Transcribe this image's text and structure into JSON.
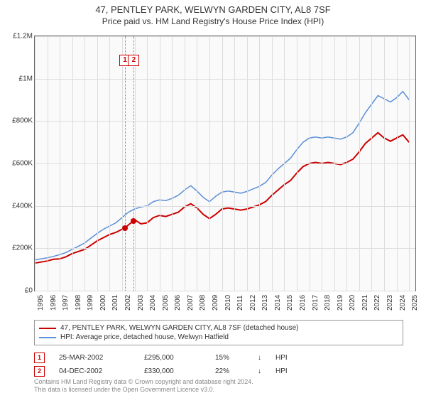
{
  "title": "47, PENTLEY PARK, WELWYN GARDEN CITY, AL8 7SF",
  "subtitle": "Price paid vs. HM Land Registry's House Price Index (HPI)",
  "chart": {
    "type": "line",
    "background_color": "#fafafa",
    "border_color": "#666666",
    "grid_color": "#dddddd",
    "x_start_year": 1995,
    "x_end_year": 2025.5,
    "ylim": [
      0,
      1200000
    ],
    "yticks": [
      {
        "v": 0,
        "label": "£0"
      },
      {
        "v": 200000,
        "label": "£200K"
      },
      {
        "v": 400000,
        "label": "£400K"
      },
      {
        "v": 600000,
        "label": "£600K"
      },
      {
        "v": 800000,
        "label": "£800K"
      },
      {
        "v": 1000000,
        "label": "£1M"
      },
      {
        "v": 1200000,
        "label": "£1.2M"
      }
    ],
    "xticks": [
      "1995",
      "1996",
      "1997",
      "1998",
      "1999",
      "2000",
      "2001",
      "2002",
      "2003",
      "2004",
      "2005",
      "2006",
      "2007",
      "2008",
      "2009",
      "2010",
      "2011",
      "2012",
      "2013",
      "2014",
      "2015",
      "2016",
      "2017",
      "2018",
      "2019",
      "2020",
      "2021",
      "2022",
      "2023",
      "2024",
      "2025"
    ],
    "series": [
      {
        "name": "property",
        "label": "47, PENTLEY PARK, WELWYN GARDEN CITY, AL8 7SF (detached house)",
        "color": "#cc0000",
        "width": 2,
        "points": [
          [
            1995,
            130000
          ],
          [
            1995.5,
            135000
          ],
          [
            1996,
            140000
          ],
          [
            1996.5,
            148000
          ],
          [
            1997,
            150000
          ],
          [
            1997.5,
            160000
          ],
          [
            1998,
            175000
          ],
          [
            1998.5,
            185000
          ],
          [
            1999,
            195000
          ],
          [
            1999.5,
            215000
          ],
          [
            2000,
            235000
          ],
          [
            2000.5,
            250000
          ],
          [
            2001,
            265000
          ],
          [
            2001.5,
            275000
          ],
          [
            2002,
            290000
          ],
          [
            2002.23,
            295000
          ],
          [
            2002.5,
            310000
          ],
          [
            2002.93,
            330000
          ],
          [
            2003,
            335000
          ],
          [
            2003.5,
            315000
          ],
          [
            2004,
            320000
          ],
          [
            2004.5,
            345000
          ],
          [
            2005,
            355000
          ],
          [
            2005.5,
            350000
          ],
          [
            2006,
            360000
          ],
          [
            2006.5,
            370000
          ],
          [
            2007,
            395000
          ],
          [
            2007.5,
            410000
          ],
          [
            2008,
            390000
          ],
          [
            2008.5,
            360000
          ],
          [
            2009,
            340000
          ],
          [
            2009.5,
            360000
          ],
          [
            2010,
            385000
          ],
          [
            2010.5,
            390000
          ],
          [
            2011,
            385000
          ],
          [
            2011.5,
            380000
          ],
          [
            2012,
            385000
          ],
          [
            2012.5,
            395000
          ],
          [
            2013,
            405000
          ],
          [
            2013.5,
            420000
          ],
          [
            2014,
            450000
          ],
          [
            2014.5,
            475000
          ],
          [
            2015,
            500000
          ],
          [
            2015.5,
            520000
          ],
          [
            2016,
            555000
          ],
          [
            2016.5,
            585000
          ],
          [
            2017,
            600000
          ],
          [
            2017.5,
            605000
          ],
          [
            2018,
            600000
          ],
          [
            2018.5,
            605000
          ],
          [
            2019,
            600000
          ],
          [
            2019.5,
            595000
          ],
          [
            2020,
            605000
          ],
          [
            2020.5,
            620000
          ],
          [
            2021,
            655000
          ],
          [
            2021.5,
            695000
          ],
          [
            2022,
            720000
          ],
          [
            2022.5,
            745000
          ],
          [
            2023,
            720000
          ],
          [
            2023.5,
            705000
          ],
          [
            2024,
            720000
          ],
          [
            2024.5,
            735000
          ],
          [
            2025,
            700000
          ]
        ]
      },
      {
        "name": "hpi",
        "label": "HPI: Average price, detached house, Welwyn Hatfield",
        "color": "#5b8fd6",
        "width": 1.5,
        "points": [
          [
            1995,
            145000
          ],
          [
            1995.5,
            150000
          ],
          [
            1996,
            155000
          ],
          [
            1996.5,
            162000
          ],
          [
            1997,
            170000
          ],
          [
            1997.5,
            180000
          ],
          [
            1998,
            195000
          ],
          [
            1998.5,
            210000
          ],
          [
            1999,
            225000
          ],
          [
            1999.5,
            248000
          ],
          [
            2000,
            270000
          ],
          [
            2000.5,
            290000
          ],
          [
            2001,
            305000
          ],
          [
            2001.5,
            320000
          ],
          [
            2002,
            345000
          ],
          [
            2002.5,
            370000
          ],
          [
            2003,
            385000
          ],
          [
            2003.5,
            395000
          ],
          [
            2004,
            400000
          ],
          [
            2004.5,
            420000
          ],
          [
            2005,
            428000
          ],
          [
            2005.5,
            425000
          ],
          [
            2006,
            435000
          ],
          [
            2006.5,
            450000
          ],
          [
            2007,
            475000
          ],
          [
            2007.5,
            495000
          ],
          [
            2008,
            470000
          ],
          [
            2008.5,
            440000
          ],
          [
            2009,
            420000
          ],
          [
            2009.5,
            445000
          ],
          [
            2010,
            465000
          ],
          [
            2010.5,
            470000
          ],
          [
            2011,
            465000
          ],
          [
            2011.5,
            460000
          ],
          [
            2012,
            468000
          ],
          [
            2012.5,
            480000
          ],
          [
            2013,
            492000
          ],
          [
            2013.5,
            510000
          ],
          [
            2014,
            545000
          ],
          [
            2014.5,
            575000
          ],
          [
            2015,
            600000
          ],
          [
            2015.5,
            625000
          ],
          [
            2016,
            665000
          ],
          [
            2016.5,
            700000
          ],
          [
            2017,
            720000
          ],
          [
            2017.5,
            725000
          ],
          [
            2018,
            720000
          ],
          [
            2018.5,
            725000
          ],
          [
            2019,
            720000
          ],
          [
            2019.5,
            715000
          ],
          [
            2020,
            725000
          ],
          [
            2020.5,
            745000
          ],
          [
            2021,
            790000
          ],
          [
            2021.5,
            840000
          ],
          [
            2022,
            880000
          ],
          [
            2022.5,
            920000
          ],
          [
            2023,
            905000
          ],
          [
            2023.5,
            890000
          ],
          [
            2024,
            910000
          ],
          [
            2024.5,
            940000
          ],
          [
            2025,
            900000
          ]
        ]
      }
    ],
    "sale_markers": [
      {
        "idx": "1",
        "x": 2002.23,
        "y": 295000,
        "box_y_top": 95000
      },
      {
        "idx": "2",
        "x": 2002.93,
        "y": 330000,
        "box_y_top": 95000
      }
    ]
  },
  "legend": {
    "items": [
      {
        "color": "#cc0000",
        "label_key": "chart.series.0.label"
      },
      {
        "color": "#5b8fd6",
        "label_key": "chart.series.1.label"
      }
    ]
  },
  "sales": [
    {
      "idx": "1",
      "date": "25-MAR-2002",
      "price": "£295,000",
      "pct": "15%",
      "arrow": "↓",
      "suffix": "HPI"
    },
    {
      "idx": "2",
      "date": "04-DEC-2002",
      "price": "£330,000",
      "pct": "22%",
      "arrow": "↓",
      "suffix": "HPI"
    }
  ],
  "attribution": {
    "line1": "Contains HM Land Registry data © Crown copyright and database right 2024.",
    "line2": "This data is licensed under the Open Government Licence v3.0."
  }
}
